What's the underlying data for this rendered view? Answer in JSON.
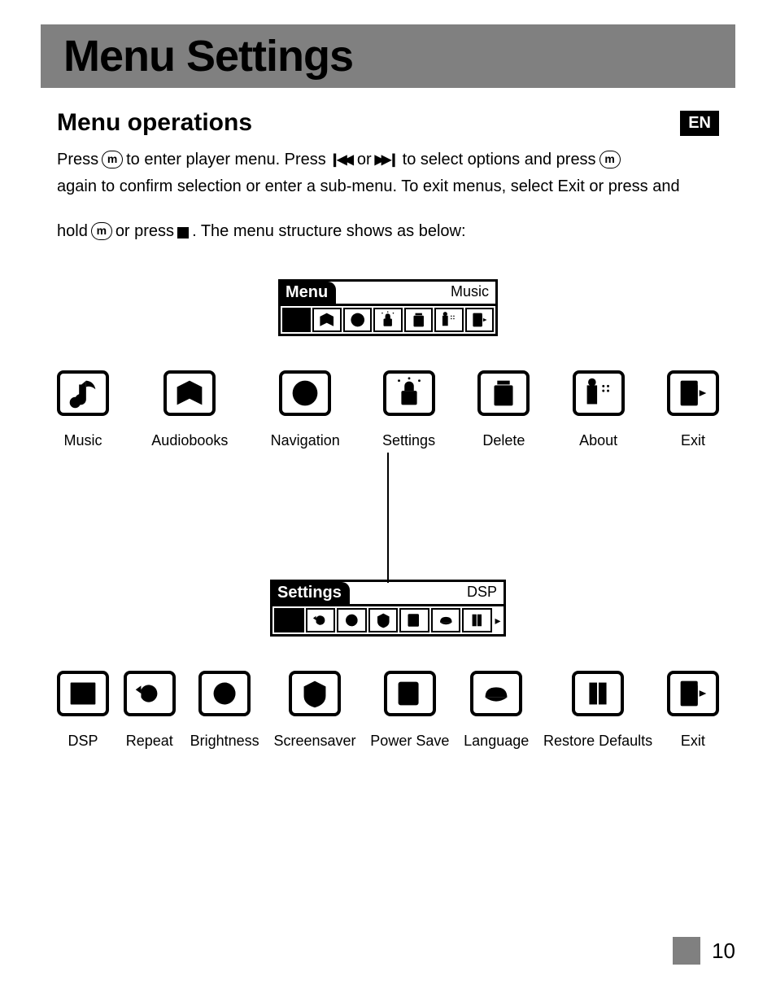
{
  "page": {
    "title": "Menu Settings",
    "section": "Menu operations",
    "lang_badge": "EN",
    "page_number": "10"
  },
  "instructions": {
    "p1_a": "Press",
    "p1_b": "to enter player menu. Press",
    "p1_c": "or",
    "p1_d": "to select options and press",
    "p2": "again to confirm selection or enter a sub-menu. To exit menus, select Exit or press and",
    "p3_a": "hold",
    "p3_b": "or press",
    "p3_c": ". The menu structure shows as below:"
  },
  "menu_lcd": {
    "tab": "Menu",
    "current": "Music",
    "icons": [
      "music",
      "audiobooks",
      "navigation",
      "settings",
      "delete",
      "about",
      "exit"
    ],
    "selected_index": 0
  },
  "menu_items": [
    {
      "icon": "music",
      "label": "Music"
    },
    {
      "icon": "audiobooks",
      "label": "Audiobooks"
    },
    {
      "icon": "navigation",
      "label": "Navigation"
    },
    {
      "icon": "settings",
      "label": "Settings"
    },
    {
      "icon": "delete",
      "label": "Delete"
    },
    {
      "icon": "about",
      "label": "About"
    },
    {
      "icon": "exit",
      "label": "Exit"
    }
  ],
  "settings_lcd": {
    "tab": "Settings",
    "current": "DSP",
    "icons": [
      "dsp",
      "repeat",
      "brightness",
      "screensaver",
      "powersave",
      "language",
      "restore"
    ],
    "selected_index": 0,
    "has_more_arrow": true
  },
  "settings_items": [
    {
      "icon": "dsp",
      "label": "DSP"
    },
    {
      "icon": "repeat",
      "label": "Repeat"
    },
    {
      "icon": "brightness",
      "label": "Brightness"
    },
    {
      "icon": "screensaver",
      "label": "Screensaver"
    },
    {
      "icon": "powersave",
      "label": "Power Save"
    },
    {
      "icon": "language",
      "label": "Language"
    },
    {
      "icon": "restore",
      "label": "Restore Defaults"
    },
    {
      "icon": "exit",
      "label": "Exit"
    }
  ],
  "colors": {
    "band": "#808080",
    "badge_bg": "#000000",
    "badge_fg": "#ffffff",
    "text": "#000000"
  }
}
